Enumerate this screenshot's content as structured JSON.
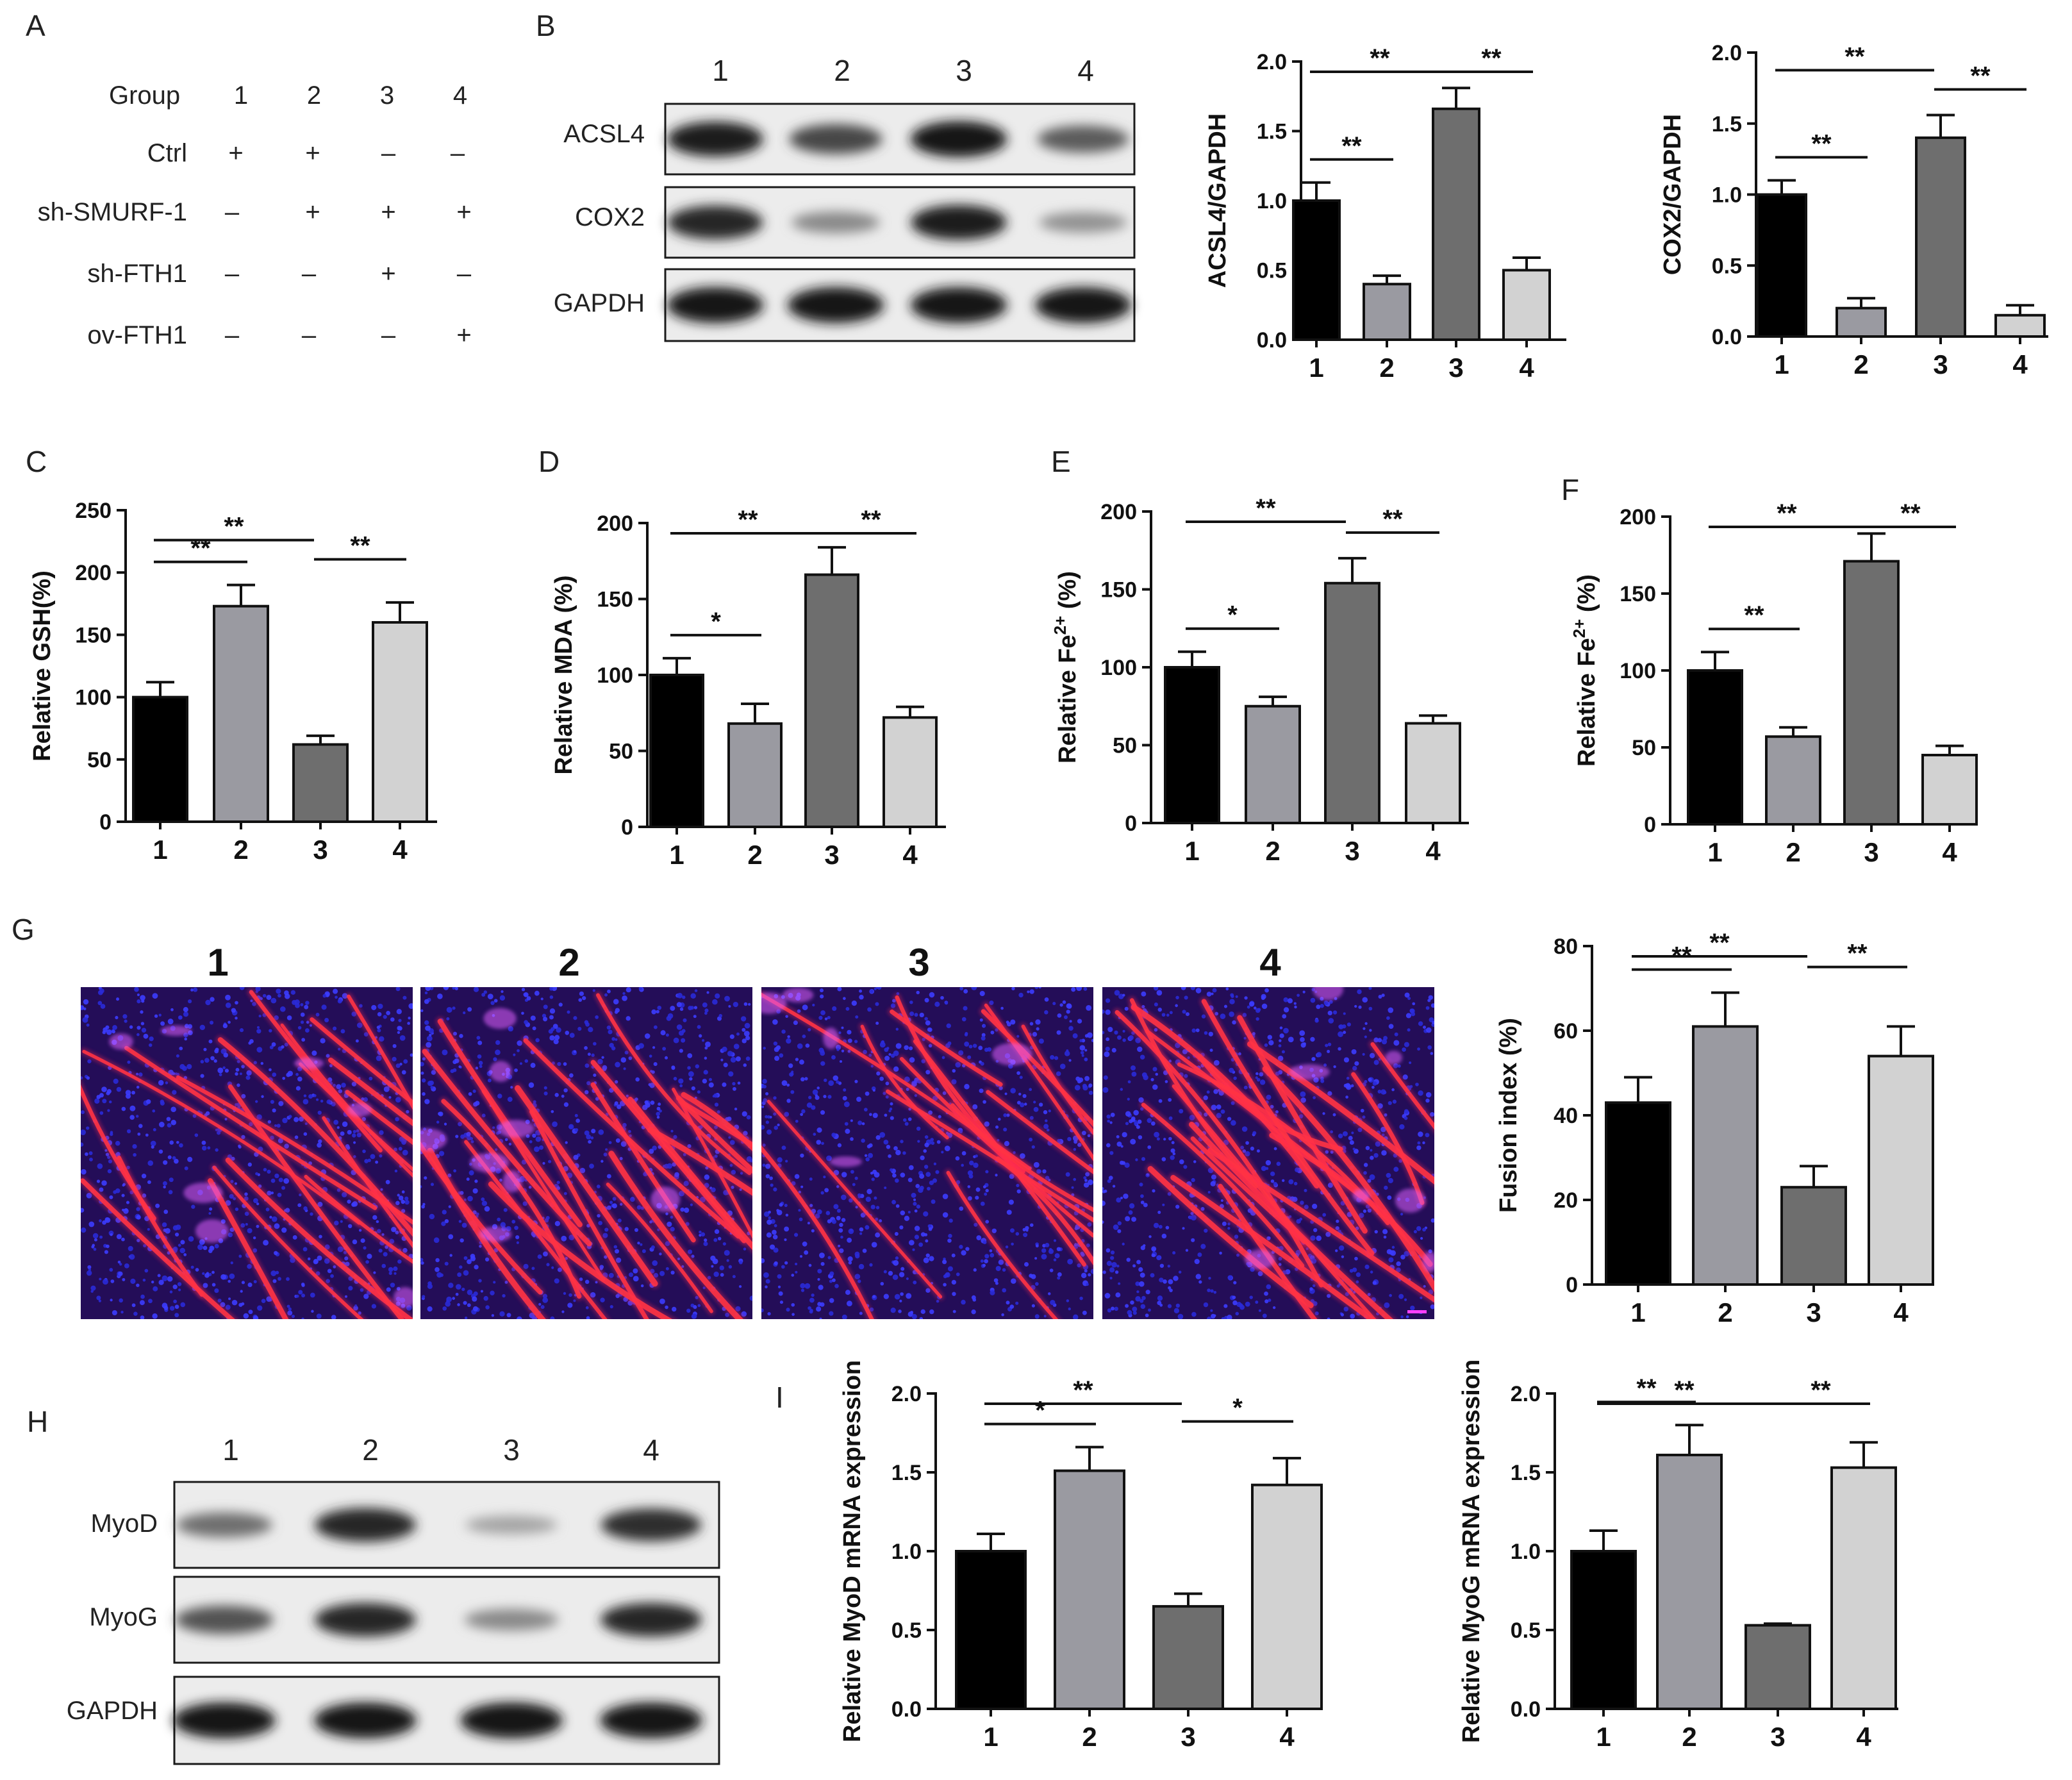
{
  "panel_letters": [
    "A",
    "B",
    "C",
    "D",
    "E",
    "F",
    "G",
    "H",
    "I"
  ],
  "table_A": {
    "header_label": "Group",
    "columns": [
      "1",
      "2",
      "3",
      "4"
    ],
    "rows": [
      {
        "label": "Ctrl",
        "values": [
          "+",
          "+",
          "–",
          "–"
        ]
      },
      {
        "label": "sh-SMURF-1",
        "values": [
          "–",
          "+",
          "+",
          "+"
        ]
      },
      {
        "label": "sh-FTH1",
        "values": [
          "–",
          "–",
          "+",
          "–"
        ]
      },
      {
        "label": "ov-FTH1",
        "values": [
          "–",
          "–",
          "–",
          "+"
        ]
      }
    ]
  },
  "blot_B": {
    "lanes": [
      "1",
      "2",
      "3",
      "4"
    ],
    "rows": [
      {
        "label": "ACSL4",
        "intensity": [
          0.95,
          0.72,
          1.0,
          0.6
        ]
      },
      {
        "label": "COX2",
        "intensity": [
          0.9,
          0.35,
          0.95,
          0.3
        ]
      },
      {
        "label": "GAPDH",
        "intensity": [
          1.0,
          1.0,
          1.0,
          1.0
        ]
      }
    ]
  },
  "blot_H": {
    "lanes": [
      "1",
      "2",
      "3",
      "4"
    ],
    "rows": [
      {
        "label": "MyoD",
        "intensity": [
          0.5,
          0.9,
          0.2,
          0.85
        ]
      },
      {
        "label": "MyoG",
        "intensity": [
          0.65,
          0.9,
          0.35,
          0.9
        ]
      },
      {
        "label": "GAPDH",
        "intensity": [
          1.0,
          1.0,
          1.0,
          1.0
        ]
      }
    ]
  },
  "micrographs_G": {
    "labels": [
      "1",
      "2",
      "3",
      "4"
    ],
    "fiber_density": [
      0.6,
      0.75,
      0.35,
      0.7
    ]
  },
  "bar_colors": [
    "#000000",
    "#9a9aa1",
    "#6e6e6e",
    "#d2d2d2"
  ],
  "chart_data": [
    {
      "id": "B1",
      "type": "bar",
      "categories": [
        "1",
        "2",
        "3",
        "4"
      ],
      "values": [
        1.0,
        0.4,
        1.66,
        0.5
      ],
      "errors": [
        0.13,
        0.06,
        0.15,
        0.09
      ],
      "ylabel": "ACSL4/GAPDH",
      "ylim": [
        0,
        2.0
      ],
      "yticks": [
        "0.0",
        "0.5",
        "1.0",
        "1.5",
        "2.0"
      ],
      "annotations": [
        {
          "from": "1",
          "to": "2",
          "label": "**"
        },
        {
          "from": "1",
          "to": "3",
          "label": "**"
        },
        {
          "from": "3",
          "to": "4",
          "label": "**"
        }
      ]
    },
    {
      "id": "B2",
      "type": "bar",
      "categories": [
        "1",
        "2",
        "3",
        "4"
      ],
      "values": [
        1.0,
        0.2,
        1.4,
        0.15
      ],
      "errors": [
        0.1,
        0.07,
        0.16,
        0.07
      ],
      "ylabel": "COX2/GAPDH",
      "ylim": [
        0,
        2.0
      ],
      "yticks": [
        "0.0",
        "0.5",
        "1.0",
        "1.5",
        "2.0"
      ],
      "annotations": [
        {
          "from": "1",
          "to": "2",
          "label": "**"
        },
        {
          "from": "1",
          "to": "3",
          "label": "**"
        },
        {
          "from": "3",
          "to": "4",
          "label": "**"
        }
      ]
    },
    {
      "id": "C",
      "type": "bar",
      "categories": [
        "1",
        "2",
        "3",
        "4"
      ],
      "values": [
        100,
        173,
        62,
        160
      ],
      "errors": [
        12,
        17,
        7,
        16
      ],
      "ylabel": "Relative GSH(%)",
      "ylim": [
        0,
        250
      ],
      "yticks": [
        "0",
        "50",
        "100",
        "150",
        "200",
        "250"
      ],
      "annotations": [
        {
          "from": "1",
          "to": "2",
          "label": "**"
        },
        {
          "from": "1",
          "to": "3",
          "label": "**"
        },
        {
          "from": "3",
          "to": "4",
          "label": "**"
        }
      ]
    },
    {
      "id": "D",
      "type": "bar",
      "categories": [
        "1",
        "2",
        "3",
        "4"
      ],
      "values": [
        100,
        68,
        166,
        72
      ],
      "errors": [
        11,
        13,
        18,
        7
      ],
      "ylabel": "Relative MDA (%)",
      "ylim": [
        0,
        200
      ],
      "yticks": [
        "0",
        "50",
        "100",
        "150",
        "200"
      ],
      "annotations": [
        {
          "from": "1",
          "to": "2",
          "label": "*"
        },
        {
          "from": "1",
          "to": "3",
          "label": "**"
        },
        {
          "from": "3",
          "to": "4",
          "label": "**"
        }
      ]
    },
    {
      "id": "E",
      "type": "bar",
      "categories": [
        "1",
        "2",
        "3",
        "4"
      ],
      "values": [
        100,
        75,
        154,
        64
      ],
      "errors": [
        10,
        6,
        16,
        5
      ],
      "ylabel": "Relative Fe",
      "ylabel_sup": "2+",
      "ylabel_tail": " (%)",
      "ylim": [
        0,
        200
      ],
      "yticks": [
        "0",
        "50",
        "100",
        "150",
        "200"
      ],
      "annotations": [
        {
          "from": "1",
          "to": "2",
          "label": "*"
        },
        {
          "from": "1",
          "to": "3",
          "label": "**"
        },
        {
          "from": "3",
          "to": "4",
          "label": "**"
        }
      ]
    },
    {
      "id": "F",
      "type": "bar",
      "categories": [
        "1",
        "2",
        "3",
        "4"
      ],
      "values": [
        100,
        57,
        171,
        45
      ],
      "errors": [
        12,
        6,
        18,
        6
      ],
      "ylabel": "Relative Fe",
      "ylabel_sup": "2+",
      "ylabel_tail": " (%)",
      "ylim": [
        0,
        200
      ],
      "yticks": [
        "0",
        "50",
        "100",
        "150",
        "200"
      ],
      "annotations": [
        {
          "from": "1",
          "to": "2",
          "label": "**"
        },
        {
          "from": "1",
          "to": "3",
          "label": "**"
        },
        {
          "from": "3",
          "to": "4",
          "label": "**"
        }
      ]
    },
    {
      "id": "G",
      "type": "bar",
      "categories": [
        "1",
        "2",
        "3",
        "4"
      ],
      "values": [
        43,
        61,
        23,
        54
      ],
      "errors": [
        6,
        8,
        5,
        7
      ],
      "ylabel": "Fusion index (%)",
      "ylim": [
        0,
        80
      ],
      "yticks": [
        "0",
        "20",
        "40",
        "60",
        "80"
      ],
      "annotations": [
        {
          "from": "1",
          "to": "2",
          "label": "**"
        },
        {
          "from": "1",
          "to": "3",
          "label": "**"
        },
        {
          "from": "3",
          "to": "4",
          "label": "**"
        }
      ]
    },
    {
      "id": "I1",
      "type": "bar",
      "categories": [
        "1",
        "2",
        "3",
        "4"
      ],
      "values": [
        1.0,
        1.51,
        0.65,
        1.42
      ],
      "errors": [
        0.11,
        0.15,
        0.08,
        0.17
      ],
      "ylabel": "Relative MyoD mRNA expression",
      "ylim": [
        0,
        2.0
      ],
      "yticks": [
        "0.0",
        "0.5",
        "1.0",
        "1.5",
        "2.0"
      ],
      "annotations": [
        {
          "from": "1",
          "to": "2",
          "label": "*"
        },
        {
          "from": "1",
          "to": "3",
          "label": "**"
        },
        {
          "from": "3",
          "to": "4",
          "label": "*"
        }
      ]
    },
    {
      "id": "I2",
      "type": "bar",
      "categories": [
        "1",
        "2",
        "3",
        "4"
      ],
      "values": [
        1.0,
        1.61,
        0.53,
        1.53
      ],
      "errors": [
        0.13,
        0.19,
        0.01,
        0.16
      ],
      "ylabel": "Relative MyoG mRNA expression",
      "ylim": [
        0,
        2.0
      ],
      "yticks": [
        "0.0",
        "0.5",
        "1.0",
        "1.5",
        "2.0"
      ],
      "annotations": [
        {
          "from": "1",
          "to": "2",
          "label": "**"
        },
        {
          "from": "1",
          "to": "3",
          "label": "**"
        },
        {
          "from": "3",
          "to": "4",
          "label": "**"
        }
      ]
    }
  ]
}
